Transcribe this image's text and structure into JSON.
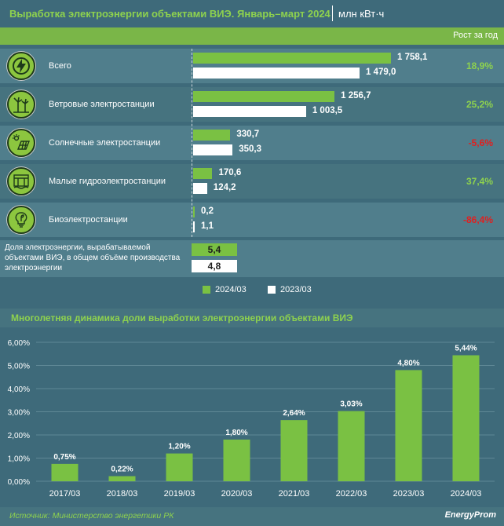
{
  "header": {
    "title": "Выработка электроэнергии объектами ВИЭ. Январь–март 2024",
    "unit": "млн кВт·ч",
    "growth_header": "Рост за год"
  },
  "rows": [
    {
      "label": "Всего",
      "icon": "lightning-icon",
      "cur": 1758.1,
      "prev": 1479.0,
      "cur_label": "1 758,1",
      "prev_label": "1 479,0",
      "growth": "18,9%",
      "growth_sign": "pos"
    },
    {
      "label": "Ветровые электростанции",
      "icon": "wind-turbine-icon",
      "cur": 1256.7,
      "prev": 1003.5,
      "cur_label": "1 256,7",
      "prev_label": "1 003,5",
      "growth": "25,2%",
      "growth_sign": "pos"
    },
    {
      "label": "Солнечные электростанции",
      "icon": "solar-panel-icon",
      "cur": 330.7,
      "prev": 350.3,
      "cur_label": "330,7",
      "prev_label": "350,3",
      "growth": "-5,6%",
      "growth_sign": "neg"
    },
    {
      "label": "Малые гидроэлектростанции",
      "icon": "hydro-plant-icon",
      "cur": 170.6,
      "prev": 124.2,
      "cur_label": "170,6",
      "prev_label": "124,2",
      "growth": "37,4%",
      "growth_sign": "pos"
    },
    {
      "label": "Биоэлектростанции",
      "icon": "bio-bulb-icon",
      "cur": 0.2,
      "prev": 1.1,
      "cur_label": "0,2",
      "prev_label": "1,1",
      "growth": "-86,4%",
      "growth_sign": "neg"
    }
  ],
  "share": {
    "label": "Доля электроэнергии, вырабатываемой объектами ВИЭ, в общем объёме производства электроэнергии",
    "cur": "5,4",
    "prev": "4,8"
  },
  "legend": {
    "cur": "2024/03",
    "prev": "2023/03"
  },
  "colors": {
    "background": "#3e6a7a",
    "accent_green": "#7ac143",
    "title_green": "#8ed24e",
    "negative_red": "#e02020",
    "bar_prev": "#ffffff"
  },
  "chart_data": {
    "type": "bar",
    "title": "Многолетняя динамика доли выработки электроэнергии объектами ВИЭ",
    "categories": [
      "2017/03",
      "2018/03",
      "2019/03",
      "2020/03",
      "2021/03",
      "2022/03",
      "2023/03",
      "2024/03"
    ],
    "values": [
      0.75,
      0.22,
      1.2,
      1.8,
      2.64,
      3.03,
      4.8,
      5.44
    ],
    "value_labels": [
      "0,75%",
      "0,22%",
      "1,20%",
      "1,80%",
      "2,64%",
      "3,03%",
      "4,80%",
      "5,44%"
    ],
    "ylim": [
      0,
      6
    ],
    "yticks": [
      0,
      1,
      2,
      3,
      4,
      5,
      6
    ],
    "ytick_labels": [
      "0,00%",
      "1,00%",
      "2,00%",
      "3,00%",
      "4,00%",
      "5,00%",
      "6,00%"
    ],
    "xlabel": "",
    "ylabel": "",
    "grid": true,
    "bar_color": "#7ac143"
  },
  "footer": {
    "source": "Источник: Министерство энергетики РК",
    "brand": "EnergyProm"
  }
}
